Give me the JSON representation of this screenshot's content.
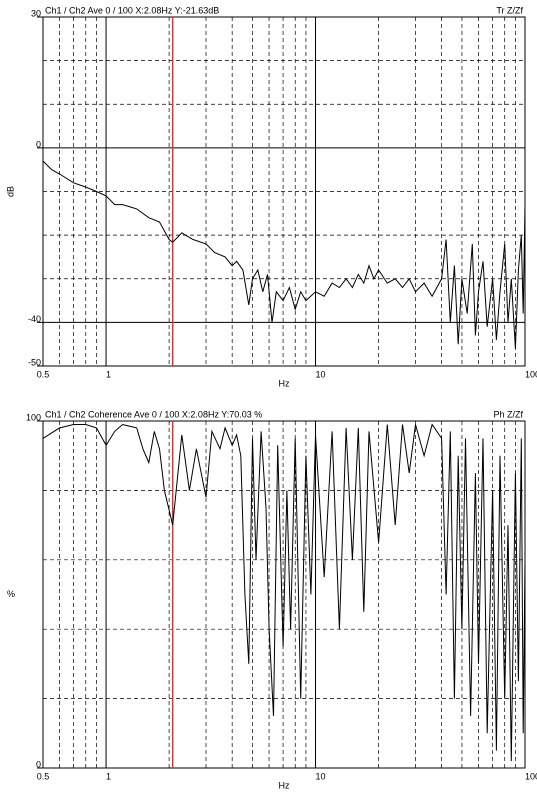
{
  "chart_data": [
    {
      "type": "line",
      "title": "Ch1 / Ch2  Ave 0 / 100  X:2.08Hz  Y:-21.63dB",
      "corner_label": "Tr Z/Zf",
      "xlabel": "Hz",
      "ylabel": "dB",
      "log_x": true,
      "color": "#000000",
      "cursor_x": 2.08,
      "cursor_color": "#e03030",
      "xlim": [
        0.5,
        100
      ],
      "xticks": [
        0.5,
        1,
        10,
        100
      ],
      "xgrid": [
        0.6,
        0.7,
        0.8,
        0.9,
        2,
        3,
        4,
        5,
        6,
        7,
        8,
        9,
        20,
        30,
        40,
        50,
        60,
        70,
        80,
        90
      ],
      "ylim": [
        -50,
        30
      ],
      "yticks": [
        30,
        0,
        -40,
        -50
      ],
      "ygrid": [
        20,
        10,
        -10,
        -20,
        -30
      ],
      "x": [
        0.5,
        0.55,
        0.6,
        0.7,
        0.8,
        0.9,
        1,
        1.1,
        1.2,
        1.4,
        1.6,
        1.8,
        2,
        2.08,
        2.3,
        2.6,
        3,
        3.3,
        3.7,
        4,
        4.2,
        4.5,
        4.8,
        5,
        5.3,
        5.6,
        5.9,
        6.2,
        6.5,
        7,
        7.5,
        8,
        8.5,
        9,
        10,
        11,
        12,
        13,
        14,
        15,
        16,
        17,
        18,
        19,
        20,
        22,
        24,
        26,
        28,
        30,
        33,
        36,
        40,
        42,
        44,
        46,
        48,
        50,
        53,
        56,
        58,
        60,
        63,
        66,
        70,
        73,
        76,
        80,
        83,
        86,
        90,
        93,
        96,
        98,
        100
      ],
      "values": [
        -3,
        -5,
        -6,
        -8,
        -9,
        -10,
        -11,
        -13,
        -13,
        -14,
        -16,
        -17,
        -21,
        -21.63,
        -19.5,
        -21,
        -22,
        -24,
        -25,
        -27,
        -26,
        -28,
        -36,
        -30,
        -28,
        -33,
        -29,
        -40,
        -33,
        -35,
        -32,
        -37,
        -33,
        -35,
        -33,
        -34,
        -31,
        -32,
        -30,
        -32,
        -29,
        -31,
        -27,
        -30,
        -28,
        -31,
        -30,
        -32,
        -30,
        -33,
        -31,
        -34,
        -30,
        -21,
        -40,
        -27,
        -45,
        -30,
        -38,
        -22,
        -43,
        -33,
        -26,
        -41,
        -30,
        -44,
        -33,
        -22,
        -40,
        -30,
        -46,
        -28,
        -20,
        -38,
        -13
      ]
    },
    {
      "type": "line",
      "title": "Ch1 / Ch2  Coherence Ave 0 / 100  X:2.08Hz  Y:70.03 %",
      "corner_label": "Ph Z/Zf",
      "xlabel": "Hz",
      "ylabel": "%",
      "log_x": true,
      "color": "#000000",
      "cursor_x": 2.08,
      "cursor_color": "#e03030",
      "xlim": [
        0.5,
        100
      ],
      "xticks": [
        0.5,
        1,
        10,
        100
      ],
      "xgrid": [
        0.6,
        0.7,
        0.8,
        0.9,
        2,
        3,
        4,
        5,
        6,
        7,
        8,
        9,
        20,
        30,
        40,
        50,
        60,
        70,
        80,
        90
      ],
      "ylim": [
        0,
        100
      ],
      "yticks": [
        100,
        0
      ],
      "ygrid": [
        80,
        60,
        40,
        20
      ],
      "x": [
        0.5,
        0.6,
        0.7,
        0.8,
        0.9,
        1,
        1.1,
        1.2,
        1.4,
        1.5,
        1.6,
        1.7,
        1.8,
        1.9,
        2.08,
        2.3,
        2.5,
        2.7,
        3,
        3.2,
        3.5,
        3.7,
        4,
        4.2,
        4.4,
        4.6,
        4.8,
        5,
        5.2,
        5.5,
        5.8,
        6,
        6.3,
        6.6,
        7,
        7.3,
        7.6,
        8,
        8.5,
        9,
        9.5,
        10,
        11,
        12,
        13,
        14,
        15,
        16,
        17,
        18,
        20,
        22,
        24,
        26,
        28,
        30,
        33,
        36,
        40,
        42,
        44,
        46,
        48,
        50,
        52,
        55,
        58,
        60,
        63,
        66,
        70,
        73,
        76,
        80,
        83,
        86,
        90,
        93,
        96,
        98,
        100
      ],
      "values": [
        95,
        98,
        99,
        99,
        98,
        93,
        97,
        99,
        98,
        92,
        88,
        97,
        92,
        80,
        70,
        96,
        80,
        92,
        78,
        97,
        92,
        98,
        93,
        96,
        90,
        50,
        30,
        95,
        60,
        97,
        75,
        40,
        15,
        93,
        35,
        80,
        40,
        95,
        20,
        90,
        50,
        96,
        55,
        97,
        40,
        98,
        60,
        98,
        45,
        97,
        65,
        99,
        70,
        99,
        85,
        99,
        90,
        99,
        95,
        50,
        97,
        20,
        90,
        40,
        95,
        15,
        85,
        30,
        95,
        10,
        80,
        5,
        90,
        20,
        70,
        2,
        85,
        25,
        95,
        10,
        60
      ]
    }
  ]
}
